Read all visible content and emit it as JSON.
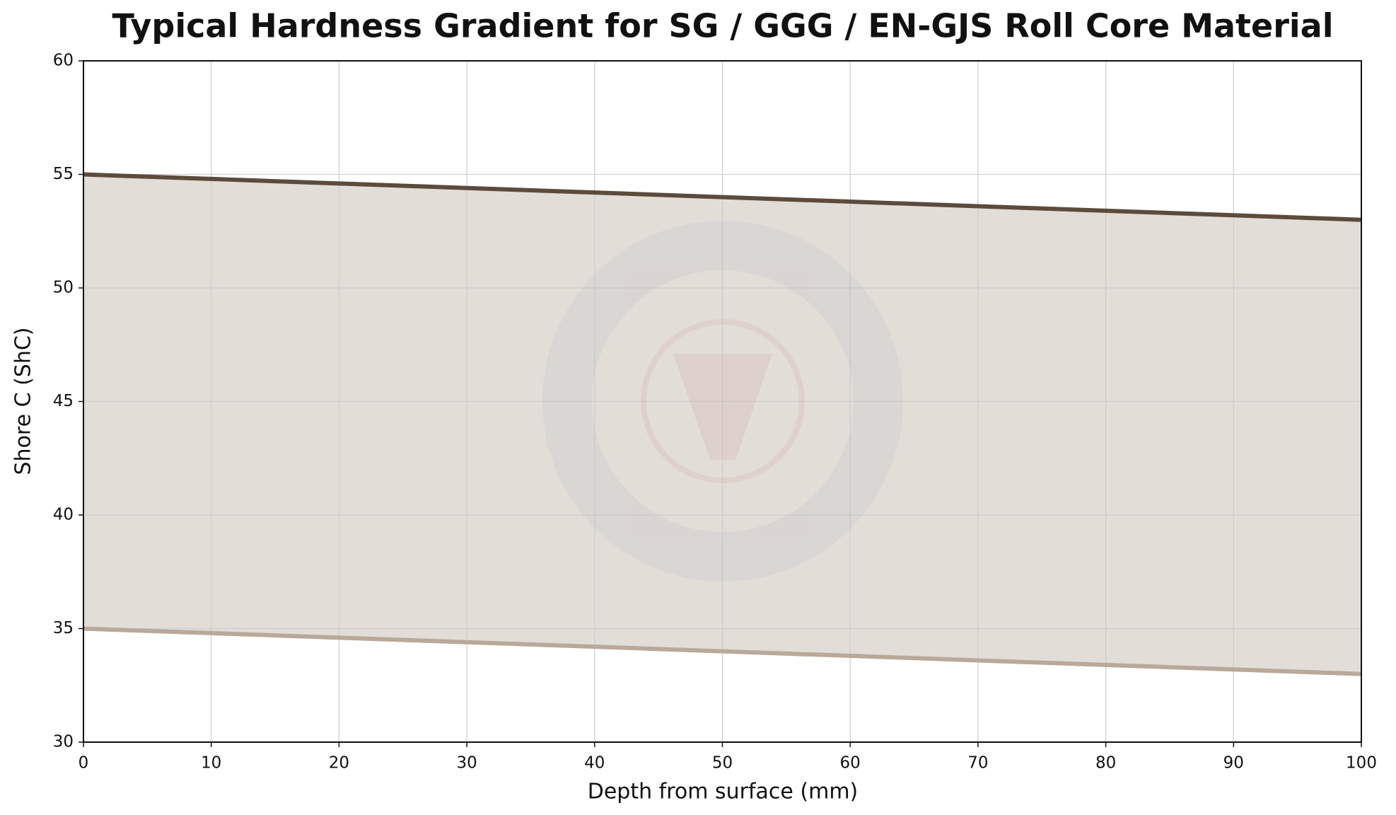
{
  "chart_data": {
    "type": "line",
    "title": "Typical Hardness Gradient for SG / GGG / EN-GJS Roll Core Material",
    "x_label": "Depth from surface (mm)",
    "y_label": "Shore C (ShC)",
    "x": [
      0,
      10,
      20,
      30,
      40,
      50,
      60,
      70,
      80,
      90,
      100
    ],
    "series": [
      {
        "color": "#5c4b3d",
        "values": [
          55,
          54.8,
          54.6,
          54.4,
          54.2,
          54,
          53.8,
          53.6,
          53.4,
          53.2,
          53
        ]
      },
      {
        "color": "#b8a99a",
        "values": [
          35,
          34.8,
          34.6,
          34.4,
          34.2,
          34,
          33.8,
          33.6,
          33.4,
          33.2,
          33
        ]
      }
    ],
    "fill_between": true,
    "fill_color": "#e2ddd7",
    "xlim": [
      0,
      100
    ],
    "xticks": [
      0,
      10,
      20,
      30,
      40,
      50,
      60,
      70,
      80,
      90,
      100
    ],
    "ylim": [
      30,
      60
    ],
    "yticks": [
      30,
      35,
      40,
      45,
      50,
      55,
      60
    ],
    "grid": true
  }
}
